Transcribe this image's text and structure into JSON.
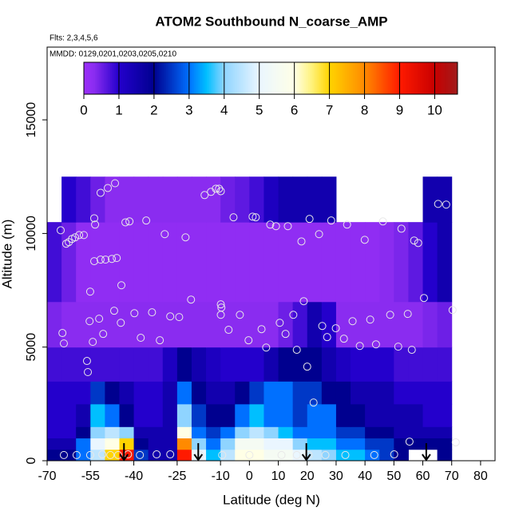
{
  "chart_data": {
    "type": "heatmap",
    "title": "ATOM2 Southbound N_coarse_AMP",
    "subtitle": "Flts: 2,3,4,5,6",
    "annotation": "MMDD: 0129,0201,0203,0205,0210",
    "x_label": "Latitude (deg N)",
    "y_label": "Altitude (m)",
    "xlim": [
      -70,
      85
    ],
    "ylim": [
      0,
      18200
    ],
    "xticks": [
      -70,
      -55,
      -40,
      -25,
      -10,
      0,
      10,
      20,
      30,
      40,
      50,
      60,
      70,
      80
    ],
    "yticks": [
      0,
      5000,
      10000,
      15000
    ],
    "x_edges": [
      -70,
      -65,
      -60,
      -55,
      -50,
      -45,
      -40,
      -35,
      -30,
      -25,
      -20,
      -15,
      -10,
      -5,
      0,
      5,
      10,
      15,
      20,
      25,
      30,
      35,
      40,
      45,
      50,
      55,
      60,
      65,
      70
    ],
    "y_edges": [
      0,
      500,
      1000,
      1500,
      2500,
      3500,
      5000,
      7000,
      10500,
      12500
    ],
    "z": [
      [
        2,
        2,
        3,
        4.5,
        7,
        9,
        2.5,
        1.5,
        1.5,
        9,
        5,
        3.5,
        4.5,
        6,
        6,
        5.5,
        5.5,
        5,
        4.5,
        4,
        3.5,
        3.5,
        3,
        2.5,
        2,
        null,
        null,
        2
      ],
      [
        1.5,
        1.5,
        3,
        5,
        6,
        7,
        2,
        1.5,
        1.5,
        8,
        4,
        3,
        4,
        5.5,
        5.5,
        5,
        5,
        4,
        3.5,
        3.5,
        3,
        3,
        2.5,
        2.5,
        2,
        2,
        2,
        2
      ],
      [
        1,
        1,
        2,
        4,
        4.5,
        4,
        1.5,
        1.5,
        1.5,
        6,
        3,
        2.5,
        3,
        4,
        4.5,
        4,
        3.5,
        3,
        3,
        3,
        2.5,
        2.5,
        2,
        2,
        1.5,
        1.5,
        1.5,
        1.5
      ],
      [
        1,
        1,
        1.5,
        3.5,
        3,
        2,
        1,
        1,
        1.5,
        4,
        2.5,
        2,
        2,
        3,
        3.5,
        3,
        3,
        2.5,
        3,
        3,
        2,
        2,
        1.5,
        1.5,
        1.5,
        1.5,
        1,
        1
      ],
      [
        1,
        1,
        1,
        2.5,
        2,
        1.5,
        1,
        1,
        1.5,
        3,
        2,
        1.5,
        1.5,
        2,
        2.5,
        3,
        3,
        2.5,
        2.5,
        2,
        2,
        1.5,
        1.5,
        1.5,
        1,
        1,
        1,
        1
      ],
      [
        0.8,
        0.8,
        0.8,
        0.8,
        0.8,
        0.8,
        0.8,
        0.8,
        1.2,
        2,
        1.5,
        1.2,
        1,
        1,
        1,
        1.5,
        2,
        2,
        2,
        1.5,
        1.2,
        1,
        1,
        1,
        0.8,
        0.8,
        0.8,
        0.8
      ],
      [
        0.4,
        0.3,
        0.3,
        0.3,
        0.3,
        0.3,
        0.3,
        0.3,
        0.3,
        0.3,
        0.3,
        0.3,
        0.3,
        0.3,
        0.3,
        0.3,
        0.5,
        0.8,
        1.5,
        1,
        0.3,
        0.3,
        0.3,
        0.3,
        0.3,
        0.3,
        0.4,
        0.5
      ],
      [
        0.8,
        0.5,
        0.2,
        0.2,
        0.2,
        0.2,
        0.2,
        0.2,
        0.2,
        0.2,
        0.2,
        0.2,
        0.2,
        0.2,
        0.2,
        0.2,
        0.2,
        0.2,
        0.2,
        0.2,
        0.2,
        0.2,
        0.2,
        0.3,
        0.4,
        0.6,
        1,
        1.5
      ],
      [
        null,
        1,
        0.8,
        0.5,
        0.3,
        0.3,
        0.3,
        0.3,
        0.3,
        0.3,
        0.3,
        0.3,
        0.5,
        0.6,
        0.8,
        1.2,
        1.5,
        1.5,
        1.5,
        1.5,
        null,
        null,
        null,
        null,
        null,
        null,
        1.5,
        1.5
      ]
    ],
    "colorbar_lim": [
      0,
      10.65
    ],
    "colorbar_ticks": [
      0,
      1,
      2,
      3,
      4,
      5,
      6,
      7,
      8,
      9,
      10
    ],
    "colorscale": [
      [
        0,
        "#9c30fa"
      ],
      [
        0.3,
        "#8a2cf0"
      ],
      [
        1,
        "#2400cc"
      ],
      [
        2,
        "#00008f"
      ],
      [
        3,
        "#0070ff"
      ],
      [
        3.5,
        "#00bfff"
      ],
      [
        4,
        "#8fd4ff"
      ],
      [
        5,
        "#eaf6ff"
      ],
      [
        6,
        "#ffffe6"
      ],
      [
        6.5,
        "#fff27a"
      ],
      [
        7,
        "#ffd400"
      ],
      [
        8,
        "#ff8a00"
      ],
      [
        9,
        "#ff1a00"
      ],
      [
        10,
        "#c80000"
      ],
      [
        10.65,
        "#a01c1c"
      ]
    ],
    "points": {
      "x": [
        -65.3,
        -63.4,
        -62.5,
        -61.4,
        -60.3,
        -58.9,
        -57.3,
        -53.7,
        -53.4,
        -51.5,
        -49.0,
        -46.5,
        -42.9,
        -41.5,
        -35.7,
        -29.3,
        -22.1,
        -15.5,
        -13.3,
        -11.6,
        -10.5,
        -9.9,
        -5.5,
        1.1,
        2.2,
        7.2,
        9.2,
        13.3,
        18.0,
        20.8,
        24.1,
        28.3,
        33.8,
        39.9,
        46.2,
        52.6,
        57.0,
        58.4,
        65.3,
        68.1,
        -53.7,
        -51.5,
        -49.8,
        -47.6,
        -45.9,
        -44.3,
        -55.1,
        -55.3,
        -52.0,
        -46.8,
        -44.5,
        -50.6,
        -54.2,
        -64.7,
        -64.2,
        -39.8,
        -37.6,
        -33.7,
        -27.4,
        -24.3,
        -20.2,
        -9.9,
        -9.7,
        -9.9,
        -7.2,
        -3.3,
        -0.3,
        4.2,
        5.8,
        10.5,
        12.5,
        16.4,
        15.2,
        18.8,
        20.0,
        22.2,
        25.2,
        26.9,
        29.9,
        32.7,
        35.7,
        38.2,
        41.8,
        43.8,
        48.7,
        51.5,
        54.8,
        56.2,
        60.4,
        70.3,
        -56.2,
        -55.9,
        -31.0,
        -64.2,
        -59.8,
        -55.1,
        -50.9,
        -48.1,
        -45.4,
        -42.0,
        -37.9,
        -32.1,
        -27.4,
        -17.1,
        -9.4,
        0.0,
        11.1,
        16.4,
        20.5,
        26.3,
        33.2,
        43.2,
        50.1,
        55.4,
        71.4
      ],
      "y": [
        10140,
        9550,
        9620,
        9760,
        9830,
        9930,
        9930,
        10670,
        10390,
        11790,
        12000,
        12210,
        10490,
        10530,
        10570,
        9970,
        9830,
        11690,
        11830,
        11970,
        11970,
        11860,
        10710,
        10740,
        10710,
        10390,
        10320,
        10320,
        9650,
        10640,
        9970,
        10570,
        10390,
        9720,
        10530,
        10210,
        9690,
        9580,
        11300,
        11270,
        8780,
        8850,
        8850,
        8880,
        8920,
        7720,
        7440,
        6140,
        6250,
        6600,
        6070,
        5580,
        5230,
        5620,
        5160,
        6490,
        5410,
        6530,
        6350,
        6320,
        7090,
        6880,
        6740,
        6420,
        5760,
        6420,
        5300,
        5790,
        4980,
        6070,
        5580,
        4880,
        6420,
        7020,
        4140,
        2560,
        5930,
        5440,
        5830,
        5370,
        6140,
        5050,
        6210,
        5120,
        6420,
        5020,
        6460,
        4880,
        7160,
        6630,
        4390,
        3900,
        5300,
        250,
        250,
        250,
        280,
        250,
        250,
        280,
        250,
        280,
        280,
        250,
        250,
        250,
        250,
        250,
        250,
        250,
        250,
        250,
        280,
        840,
        810
      ]
    },
    "arrows": [
      -43.4,
      -17.7,
      19.7,
      61.2
    ]
  }
}
